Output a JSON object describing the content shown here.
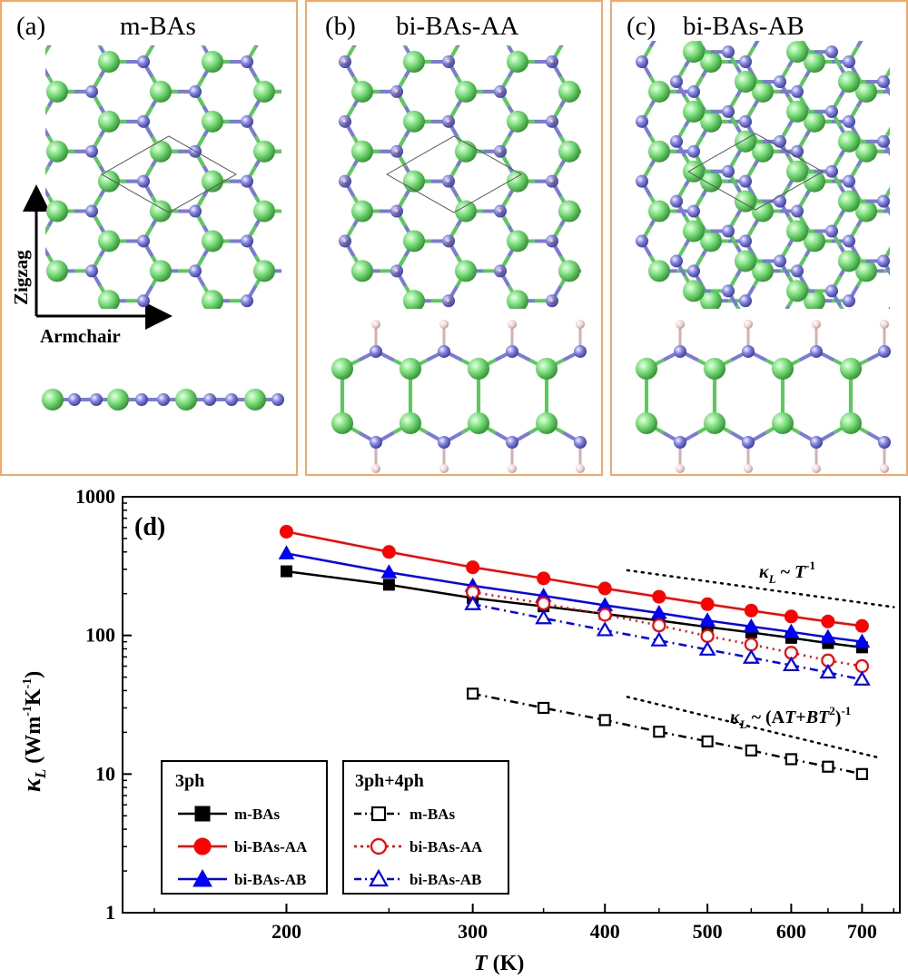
{
  "panels": [
    {
      "label": "(a)",
      "title": "m-BAs"
    },
    {
      "label": "(b)",
      "title": "bi-BAs-AA"
    },
    {
      "label": "(c)",
      "title": "bi-BAs-AB"
    }
  ],
  "direction_labels": {
    "zigzag": "Zigzag",
    "armchair": "Armchair"
  },
  "colors": {
    "frame": "#f0a96a",
    "atom_B": "#7474d6",
    "atom_As": "#6fd36f",
    "atom_H": "#e6c2c2",
    "m_BAs": "#000000",
    "bi_AA": "#ff0000",
    "bi_AB": "#0000ff"
  },
  "chart_data": {
    "type": "line",
    "panel_label": "(d)",
    "xlabel_italic": "T",
    "xlabel_rest": " (K)",
    "ylabel_kappa": "κ",
    "ylabel_sub": "L",
    "ylabel_rest": " (Wm",
    "ylabel_exp1": "-1",
    "ylabel_mid": "K",
    "ylabel_exp2": "-1",
    "ylabel_close": ")",
    "x_scale": "log",
    "y_scale": "log",
    "xlim": [
      140,
      760
    ],
    "ylim": [
      1,
      1000
    ],
    "x_tick_labels": [
      "200",
      "300",
      "400",
      "500",
      "600",
      "700"
    ],
    "y_tick_labels": [
      "1",
      "10",
      "100",
      "1000"
    ],
    "x_ticks": [
      200,
      300,
      400,
      500,
      600,
      700
    ],
    "y_ticks": [
      1,
      10,
      100,
      1000
    ],
    "series": [
      {
        "name": "m-BAs",
        "group": "3ph",
        "color": "#000000",
        "marker": "square",
        "filled": true,
        "line": "solid",
        "x": [
          200,
          250,
          300,
          350,
          400,
          450,
          500,
          550,
          600,
          650,
          700
        ],
        "y": [
          290,
          232,
          186,
          162,
          143,
          128,
          115,
          105,
          96,
          88,
          82
        ]
      },
      {
        "name": "bi-BAs-AA",
        "group": "3ph",
        "color": "#ff0000",
        "marker": "circle",
        "filled": true,
        "line": "solid",
        "x": [
          200,
          250,
          300,
          350,
          400,
          450,
          500,
          550,
          600,
          650,
          700
        ],
        "y": [
          560,
          400,
          310,
          258,
          218,
          190,
          168,
          151,
          137,
          126,
          117
        ]
      },
      {
        "name": "bi-BAs-AB",
        "group": "3ph",
        "color": "#0000ff",
        "marker": "triangle",
        "filled": true,
        "line": "solid",
        "x": [
          200,
          250,
          300,
          350,
          400,
          450,
          500,
          550,
          600,
          650,
          700
        ],
        "y": [
          390,
          285,
          228,
          193,
          165,
          145,
          128,
          116,
          106,
          97,
          90
        ]
      },
      {
        "name": "m-BAs",
        "group": "3ph+4ph",
        "color": "#000000",
        "marker": "square",
        "filled": false,
        "line": "dashdot",
        "x": [
          300,
          350,
          400,
          450,
          500,
          550,
          600,
          650,
          700
        ],
        "y": [
          38,
          30,
          24.5,
          20.2,
          17.2,
          14.8,
          12.8,
          11.3,
          10.0
        ]
      },
      {
        "name": "bi-BAs-AA",
        "group": "3ph+4ph",
        "color": "#ff0000",
        "marker": "circle",
        "filled": false,
        "line": "dotted",
        "x": [
          300,
          350,
          400,
          450,
          500,
          550,
          600,
          650,
          700
        ],
        "y": [
          205,
          170,
          141,
          118,
          99,
          86,
          75,
          66,
          60
        ]
      },
      {
        "name": "bi-BAs-AB",
        "group": "3ph+4ph",
        "color": "#0000ff",
        "marker": "triangle",
        "filled": false,
        "line": "dashdot",
        "x": [
          300,
          350,
          400,
          450,
          500,
          550,
          600,
          650,
          700
        ],
        "y": [
          168,
          133,
          109,
          92,
          79,
          69,
          61,
          54,
          48
        ]
      }
    ],
    "reference_lines": [
      {
        "x": [
          420,
          750
        ],
        "y": [
          295,
          160
        ]
      },
      {
        "x": [
          420,
          730
        ],
        "y": [
          36,
          13
        ]
      }
    ],
    "annotations": {
      "ref1_kappa": "κ",
      "ref1_sub": "L",
      "ref1_text": " ~ ",
      "ref1_T": "T",
      "ref1_exp": "-1",
      "ref2_kappa": "κ",
      "ref2_sub": "L",
      "ref2_text": " ~ (A",
      "ref2_T1": "T",
      "ref2_plus": "+",
      "ref2_B": "B",
      "ref2_T2": "T",
      "ref2_sq": "2",
      "ref2_close": ")",
      "ref2_exp": "-1"
    },
    "legend": {
      "left_title": "3ph",
      "right_title": "3ph+4ph",
      "left_items": [
        "m-BAs",
        "bi-BAs-AA",
        "bi-BAs-AB"
      ],
      "right_items": [
        "m-BAs",
        "bi-BAs-AA",
        "bi-BAs-AB"
      ]
    }
  }
}
